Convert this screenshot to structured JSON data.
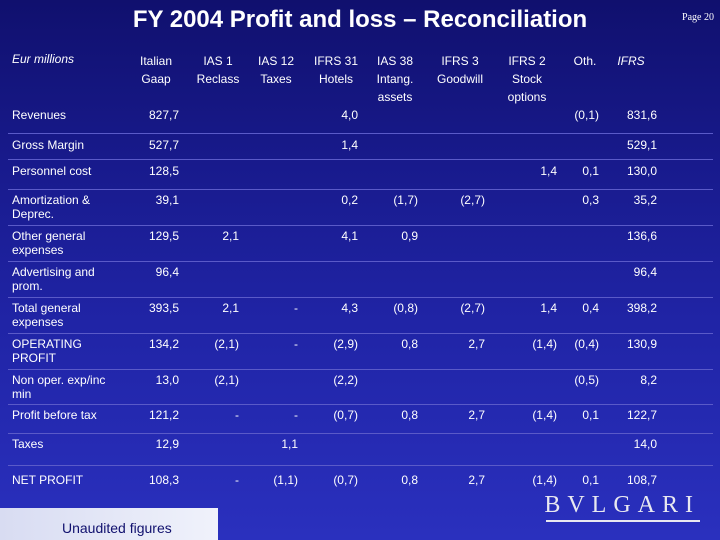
{
  "title": "FY 2004 Profit and loss – Reconciliation",
  "page": "Page 20",
  "unit": "Eur millions",
  "columns": [
    {
      "line1": "Italian",
      "line2": "Gaap",
      "line3": ""
    },
    {
      "line1": "IAS 1",
      "line2": "Reclass",
      "line3": ""
    },
    {
      "line1": "IAS 12",
      "line2": "Taxes",
      "line3": ""
    },
    {
      "line1": "IFRS 31",
      "line2": "Hotels",
      "line3": ""
    },
    {
      "line1": "IAS 38",
      "line2": "Intang.",
      "line3": "assets"
    },
    {
      "line1": "IFRS 3",
      "line2": "Goodwill",
      "line3": ""
    },
    {
      "line1": "IFRS 2",
      "line2": "Stock",
      "line3": "options"
    },
    {
      "line1": "Oth.",
      "line2": "",
      "line3": ""
    },
    {
      "line1": "IFRS",
      "line2": "",
      "line3": ""
    }
  ],
  "rows": [
    {
      "label": "Revenues",
      "values": [
        "827,7",
        "",
        "",
        "4,0",
        "",
        "",
        "",
        "(0,1)",
        "831,6"
      ]
    },
    {
      "label": "Gross Margin",
      "values": [
        "527,7",
        "",
        "",
        "1,4",
        "",
        "",
        "",
        "",
        "529,1"
      ]
    },
    {
      "label": "Personnel cost",
      "values": [
        "128,5",
        "",
        "",
        "",
        "",
        "",
        "1,4",
        "0,1",
        "130,0"
      ]
    },
    {
      "label": "Amortization & Deprec.",
      "values": [
        "39,1",
        "",
        "",
        "0,2",
        "(1,7)",
        "(2,7)",
        "",
        "0,3",
        "35,2"
      ]
    },
    {
      "label": "Other general expenses",
      "values": [
        "129,5",
        "2,1",
        "",
        "4,1",
        "0,9",
        "",
        "",
        "",
        "136,6"
      ]
    },
    {
      "label": "Advertising and prom.",
      "values": [
        "96,4",
        "",
        "",
        "",
        "",
        "",
        "",
        "",
        "96,4"
      ]
    },
    {
      "label": "Total general expenses",
      "values": [
        "393,5",
        "2,1",
        "-",
        "4,3",
        "(0,8)",
        "(2,7)",
        "1,4",
        "0,4",
        "398,2"
      ]
    },
    {
      "label": "OPERATING PROFIT",
      "values": [
        "134,2",
        "(2,1)",
        "-",
        "(2,9)",
        "0,8",
        "2,7",
        "(1,4)",
        "(0,4)",
        "130,9"
      ]
    },
    {
      "label": "Non oper. exp/inc min",
      "values": [
        "13,0",
        "(2,1)",
        "",
        "(2,2)",
        "",
        "",
        "",
        "(0,5)",
        "8,2"
      ]
    },
    {
      "label": "Profit before tax",
      "values": [
        "121,2",
        "-",
        "-",
        "(0,7)",
        "0,8",
        "2,7",
        "(1,4)",
        "0,1",
        "122,7"
      ]
    },
    {
      "label": "Taxes",
      "values": [
        "12,9",
        "",
        "1,1",
        "",
        "",
        "",
        "",
        "",
        "14,0"
      ]
    },
    {
      "label": "NET PROFIT",
      "values": [
        "108,3",
        "-",
        "(1,1)",
        "(0,7)",
        "0,8",
        "2,7",
        "(1,4)",
        "0,1",
        "108,7"
      ]
    }
  ],
  "footnote": "Unaudited figures",
  "logo": "BVLGARI"
}
